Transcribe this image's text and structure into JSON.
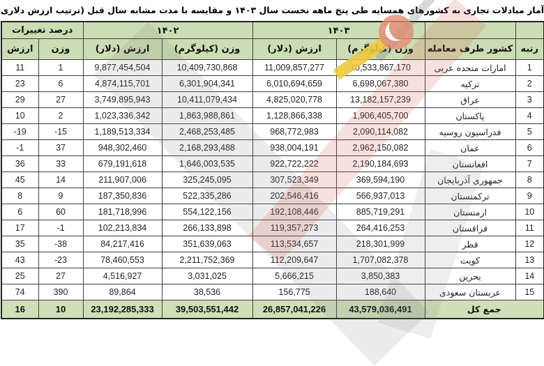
{
  "title": "آمار مبادلات تجاری به کشورهای همسایه طی پنج ماهه نخست سال ۱۴۰۳ و مقایسه با مدت مشابه سال قبل (ترتیب ارزش دلاری سال ۱۴۰۳)",
  "table": {
    "group_headers": {
      "year_current": "۱۴۰۳",
      "year_previous": "۱۴۰۲",
      "percent_change": "درصد تغییرات"
    },
    "column_headers": {
      "rank": "رتبه",
      "country": "کشور طرف معامله",
      "weight": "وزن (کیلوگرم)",
      "value": "ارزش (دلار)",
      "weight_pct": "وزن",
      "value_pct": "ارزش"
    },
    "rows": [
      {
        "rank": "1",
        "country": "امارات متحده عربی",
        "weight_1403": "10,533,867,170",
        "value_1403": "11,009,857,277",
        "weight_1402": "10,409,730,868",
        "value_1402": "9,877,454,504",
        "weight_pct": "1",
        "value_pct": "11"
      },
      {
        "rank": "2",
        "country": "ترکیه",
        "weight_1403": "6,698,067,380",
        "value_1403": "6,010,694,659",
        "weight_1402": "6,301,904,341",
        "value_1402": "4,874,115,701",
        "weight_pct": "6",
        "value_pct": "23"
      },
      {
        "rank": "3",
        "country": "عراق",
        "weight_1403": "13,182,157,239",
        "value_1403": "4,825,020,778",
        "weight_1402": "10,411,079,434",
        "value_1402": "3,749,895,943",
        "weight_pct": "27",
        "value_pct": "29"
      },
      {
        "rank": "4",
        "country": "پاکستان",
        "weight_1403": "1,906,405,700",
        "value_1403": "1,128,866,338",
        "weight_1402": "1,863,988,861",
        "value_1402": "1,023,336,342",
        "weight_pct": "2",
        "value_pct": "10"
      },
      {
        "rank": "5",
        "country": "فدراسیون روسیه",
        "weight_1403": "2,090,114,082",
        "value_1403": "968,772,983",
        "weight_1402": "2,468,253,485",
        "value_1402": "1,189,513,334",
        "weight_pct": "-15",
        "value_pct": "-19"
      },
      {
        "rank": "6",
        "country": "عمان",
        "weight_1403": "2,962,150,082",
        "value_1403": "938,004,191",
        "weight_1402": "2,168,293,488",
        "value_1402": "948,302,460",
        "weight_pct": "37",
        "value_pct": "-1"
      },
      {
        "rank": "7",
        "country": "افغانستان",
        "weight_1403": "2,190,184,693",
        "value_1403": "922,722,222",
        "weight_1402": "1,646,003,535",
        "value_1402": "679,191,618",
        "weight_pct": "33",
        "value_pct": "36"
      },
      {
        "rank": "8",
        "country": "جمهوری آذربایجان",
        "weight_1403": "369,594,190",
        "value_1403": "307,523,349",
        "weight_1402": "325,245,095",
        "value_1402": "211,907,006",
        "weight_pct": "14",
        "value_pct": "45"
      },
      {
        "rank": "9",
        "country": "ترکمنستان",
        "weight_1403": "566,937,013",
        "value_1403": "202,546,416",
        "weight_1402": "522,335,286",
        "value_1402": "187,350,836",
        "weight_pct": "9",
        "value_pct": "8"
      },
      {
        "rank": "10",
        "country": "ارمنستان",
        "weight_1403": "885,719,291",
        "value_1403": "192,108,446",
        "weight_1402": "554,122,156",
        "value_1402": "181,718,996",
        "weight_pct": "60",
        "value_pct": "6"
      },
      {
        "rank": "11",
        "country": "قزاقستان",
        "weight_1403": "264,416,253",
        "value_1403": "119,357,273",
        "weight_1402": "266,133,898",
        "value_1402": "102,213,834",
        "weight_pct": "-1",
        "value_pct": "17"
      },
      {
        "rank": "12",
        "country": "قطر",
        "weight_1403": "218,301,999",
        "value_1403": "113,534,657",
        "weight_1402": "351,639,063",
        "value_1402": "84,217,416",
        "weight_pct": "-38",
        "value_pct": "35"
      },
      {
        "rank": "13",
        "country": "کویت",
        "weight_1403": "1,707,082,378",
        "value_1403": "112,209,647",
        "weight_1402": "2,211,752,369",
        "value_1402": "78,460,553",
        "weight_pct": "-23",
        "value_pct": "43"
      },
      {
        "rank": "14",
        "country": "بحرین",
        "weight_1403": "3,850,383",
        "value_1403": "5,666,215",
        "weight_1402": "3,031,025",
        "value_1402": "4,516,927",
        "weight_pct": "27",
        "value_pct": "25"
      },
      {
        "rank": "15",
        "country": "عربستان سعودی",
        "weight_1403": "188,640",
        "value_1403": "156,775",
        "weight_1402": "38,536",
        "value_1402": "89,864",
        "weight_pct": "390",
        "value_pct": "74"
      }
    ],
    "total": {
      "label": "جمع کل",
      "weight_1403": "43,579,036,491",
      "value_1403": "26,857,041,226",
      "weight_1402": "39,503,551,442",
      "value_1402": "23,192,285,333",
      "weight_pct": "10",
      "value_pct": "16"
    }
  },
  "colors": {
    "header_bg": "#cbddb4",
    "total_bg": "#cfe0b8",
    "border": "#3f3f3f",
    "watermark_pink": "#d05a46",
    "watermark_gray": "#787878",
    "watermark_yellow": "#edc93f"
  }
}
